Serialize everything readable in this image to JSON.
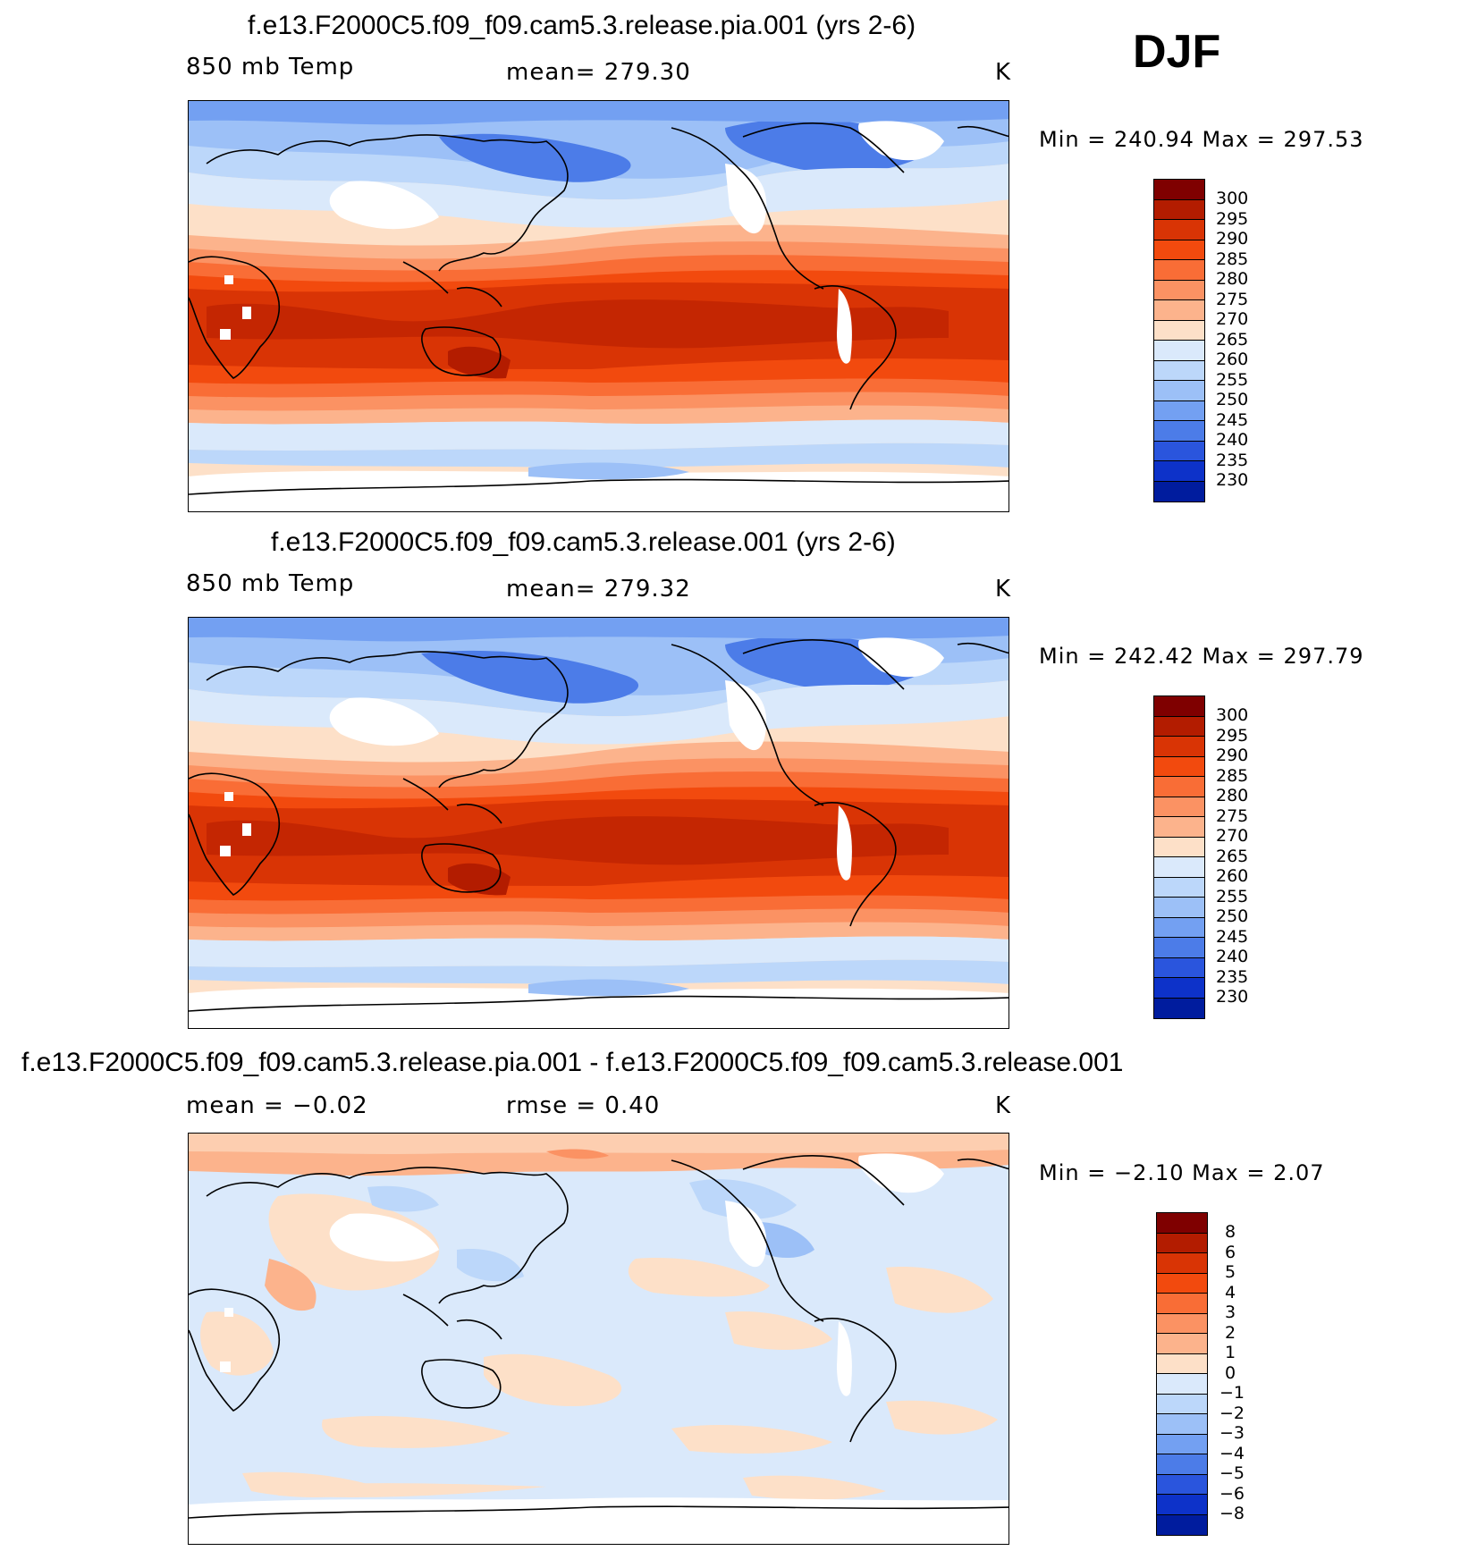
{
  "season": "DJF",
  "panels": [
    {
      "title": "f.e13.F2000C5.f09_f09.cam5.3.release.pia.001 (yrs 2-6)",
      "variable": "850 mb Temp",
      "stat_text": "mean=  279.30",
      "units": "K",
      "minmax": "Min  =  240.94  Max  =  297.53",
      "colorbar": {
        "labels": [
          "300",
          "295",
          "290",
          "285",
          "280",
          "275",
          "270",
          "265",
          "260",
          "255",
          "250",
          "245",
          "240",
          "235",
          "230"
        ],
        "colors": [
          "#7f0000",
          "#b31c00",
          "#d93405",
          "#f24a0e",
          "#f96d36",
          "#fb9263",
          "#fcb38c",
          "#fde0c8",
          "#dae9fb",
          "#bcd7fa",
          "#9cc0f7",
          "#73a0f2",
          "#4c7ce8",
          "#2a55dd",
          "#0d32c9",
          "#001c9e"
        ]
      },
      "mean_value": 279.3,
      "min_value": 240.94,
      "max_value": 297.53
    },
    {
      "title": "f.e13.F2000C5.f09_f09.cam5.3.release.001 (yrs 2-6)",
      "variable": "850 mb Temp",
      "stat_text": "mean=  279.32",
      "units": "K",
      "minmax": "Min  =  242.42  Max  =  297.79",
      "colorbar": {
        "labels": [
          "300",
          "295",
          "290",
          "285",
          "280",
          "275",
          "270",
          "265",
          "260",
          "255",
          "250",
          "245",
          "240",
          "235",
          "230"
        ],
        "colors": [
          "#7f0000",
          "#b31c00",
          "#d93405",
          "#f24a0e",
          "#f96d36",
          "#fb9263",
          "#fcb38c",
          "#fde0c8",
          "#dae9fb",
          "#bcd7fa",
          "#9cc0f7",
          "#73a0f2",
          "#4c7ce8",
          "#2a55dd",
          "#0d32c9",
          "#001c9e"
        ]
      },
      "mean_value": 279.32,
      "min_value": 242.42,
      "max_value": 297.79
    },
    {
      "title": "f.e13.F2000C5.f09_f09.cam5.3.release.pia.001 - f.e13.F2000C5.f09_f09.cam5.3.release.001",
      "variable": "mean  =    −0.02",
      "stat_text": "rmse  =     0.40",
      "units": "K",
      "minmax": "Min  =    −2.10  Max  =     2.07",
      "colorbar": {
        "labels": [
          "8",
          "6",
          "5",
          "4",
          "3",
          "2",
          "1",
          "0",
          "−1",
          "−2",
          "−3",
          "−4",
          "−5",
          "−6",
          "−8"
        ],
        "colors": [
          "#7f0000",
          "#b31c00",
          "#d93405",
          "#f24a0e",
          "#f96d36",
          "#fb9263",
          "#fcb38c",
          "#fde0c8",
          "#dae9fb",
          "#bcd7fa",
          "#9cc0f7",
          "#73a0f2",
          "#4c7ce8",
          "#2a55dd",
          "#0d32c9",
          "#001c9e"
        ]
      },
      "mean_value": -0.02,
      "rmse_value": 0.4,
      "min_value": -2.1,
      "max_value": 2.07
    }
  ]
}
